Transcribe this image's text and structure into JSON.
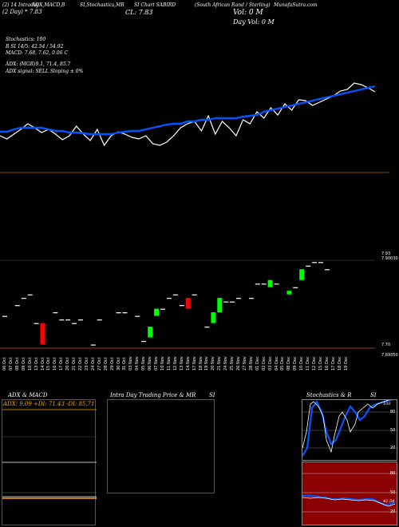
{
  "header": {
    "left1": "(2) 14 Intraday",
    "left2": "(2 Day) * 7.83",
    "item_a": "ADX,MACD,B",
    "item_b": "SI,Stochastics,MR",
    "item_c": "CL: 7.83",
    "item_d": "SI Chart SABIRD",
    "item_e": "(South African Rand / Sterling)",
    "item_f": "MunafaSutra.com",
    "volume": "Vol: 0  M",
    "day_volume": "Day Vol: 0  M"
  },
  "indicators": {
    "stochastics": "Stochastics: 100",
    "rsi": "R                SI 14/5: 42.54  / 54.92",
    "macd": "MACD: 7.68, 7.62, 0.06  C",
    "adx": "ADX:                          (MGR)9.1, 71.4,  85.7",
    "adx_signal": "ADX  signal: SELL  Sloping ± 0%"
  },
  "price_labels": {
    "top": "7.93",
    "top_sub": "7.90030",
    "bottom": "7.70",
    "bottom_sub": "7.69350"
  },
  "dates": [
    "06 Oct",
    "07 Oct",
    "08 Oct",
    "09 Oct",
    "10 Oct",
    "13 Oct",
    "14 Oct",
    "15 Oct",
    "16 Oct",
    "17 Oct",
    "20 Oct",
    "21 Oct",
    "22 Oct",
    "23 Oct",
    "24 Oct",
    "27 Oct",
    "28 Oct",
    "29 Oct",
    "30 Oct",
    "31 Oct",
    "03 Nov",
    "04 Nov",
    "05 Nov",
    "06 Nov",
    "07 Nov",
    "10 Nov",
    "11 Nov",
    "12 Nov",
    "13 Nov",
    "14 Nov",
    "17 Nov",
    "18 Nov",
    "19 Nov",
    "20 Nov",
    "21 Nov",
    "24 Nov",
    "25 Nov",
    "26 Nov",
    "27 Nov",
    "28 Nov",
    "01 Dec",
    "02 Dec",
    "03 Dec",
    "04 Dec",
    "05 Dec",
    "08 Dec",
    "09 Dec",
    "10 Dec",
    "11 Dec",
    "12 Dec",
    "15 Dec",
    "16 Dec",
    "17 Dec",
    "18 Dec",
    "19 Dec"
  ],
  "panels": {
    "adx_title": "ADX  & MACD",
    "adx_values": "ADX: 9.09  +DI: 71.43  -DI: 85.71",
    "intraday_title": "Intra Day Trading Price  & MR",
    "intraday_si": "SI",
    "stoch_title": "Stochastics & R",
    "stoch_si": "SI",
    "stoch_ticks": [
      "80",
      "50",
      "20"
    ],
    "rsi_ticks": [
      "80",
      "50",
      "20"
    ],
    "rsi_last": "42.54",
    "stoch_last": "100"
  },
  "colors": {
    "up": "#00ff00",
    "down": "#ff0000",
    "line_blue": "#0055ff",
    "rsi_bg": "#8b0000",
    "adx_up": "#ffa500"
  },
  "chart_data": {
    "type": "line",
    "stochastic_line": [
      70,
      66,
      72,
      78,
      85,
      80,
      74,
      78,
      72,
      65,
      70,
      82,
      72,
      64,
      78,
      58,
      70,
      75,
      72,
      68,
      66,
      70,
      60,
      58,
      62,
      70,
      80,
      85,
      88,
      76,
      95,
      72,
      88,
      80,
      70,
      90,
      85,
      100,
      92,
      105,
      96,
      110,
      102,
      115,
      114,
      108,
      112,
      116,
      120,
      126,
      128,
      136,
      134,
      130,
      125
    ],
    "rsi_smooth": [
      75,
      75,
      78,
      80,
      80,
      80,
      80,
      78,
      76,
      76,
      74,
      74,
      73,
      72,
      72,
      72,
      72,
      74,
      75,
      76,
      76,
      78,
      80,
      82,
      84,
      85,
      85,
      88,
      88,
      90,
      90,
      92,
      92,
      92,
      92,
      94,
      95,
      96,
      100,
      102,
      104,
      106,
      108,
      110,
      112,
      114,
      116,
      118,
      120,
      122,
      124,
      126,
      128,
      130,
      132
    ],
    "candles": [
      {
        "d": "06 Oct",
        "o": 7.78,
        "c": 7.78
      },
      {
        "d": "08 Oct",
        "o": 7.81,
        "c": 7.81
      },
      {
        "d": "09 Oct",
        "o": 7.83,
        "c": 7.83
      },
      {
        "d": "10 Oct",
        "o": 7.84,
        "c": 7.84
      },
      {
        "d": "13 Oct",
        "o": 7.76,
        "c": 7.76
      },
      {
        "d": "14 Oct",
        "o": 7.76,
        "c": 7.7
      },
      {
        "d": "16 Oct",
        "o": 7.79,
        "c": 7.79
      },
      {
        "d": "17 Oct",
        "o": 7.77,
        "c": 7.77
      },
      {
        "d": "20 Oct",
        "o": 7.77,
        "c": 7.77
      },
      {
        "d": "21 Oct",
        "o": 7.76,
        "c": 7.76
      },
      {
        "d": "22 Oct",
        "o": 7.77,
        "c": 7.77
      },
      {
        "d": "24 Oct",
        "o": 7.7,
        "c": 7.7
      },
      {
        "d": "27 Oct",
        "o": 7.77,
        "c": 7.77
      },
      {
        "d": "30 Oct",
        "o": 7.79,
        "c": 7.79
      },
      {
        "d": "31 Oct",
        "o": 7.79,
        "c": 7.79
      },
      {
        "d": "04 Nov",
        "o": 7.78,
        "c": 7.78
      },
      {
        "d": "05 Nov",
        "o": 7.71,
        "c": 7.71
      },
      {
        "d": "06 Nov",
        "o": 7.72,
        "c": 7.75
      },
      {
        "d": "07 Nov",
        "o": 7.78,
        "c": 7.8
      },
      {
        "d": "10 Nov",
        "o": 7.8,
        "c": 7.8
      },
      {
        "d": "11 Nov",
        "o": 7.83,
        "c": 7.83
      },
      {
        "d": "12 Nov",
        "o": 7.84,
        "c": 7.84
      },
      {
        "d": "13 Nov",
        "o": 7.81,
        "c": 7.81
      },
      {
        "d": "14 Nov",
        "o": 7.83,
        "c": 7.8
      },
      {
        "d": "17 Nov",
        "o": 7.84,
        "c": 7.84
      },
      {
        "d": "19 Nov",
        "o": 7.75,
        "c": 7.75
      },
      {
        "d": "20 Nov",
        "o": 7.76,
        "c": 7.79
      },
      {
        "d": "21 Nov",
        "o": 7.79,
        "c": 7.83
      },
      {
        "d": "24 Nov",
        "o": 7.82,
        "c": 7.82
      },
      {
        "d": "25 Nov",
        "o": 7.82,
        "c": 7.82
      },
      {
        "d": "26 Nov",
        "o": 7.83,
        "c": 7.83
      },
      {
        "d": "28 Nov",
        "o": 7.83,
        "c": 7.83
      },
      {
        "d": "01 Dec",
        "o": 7.87,
        "c": 7.87
      },
      {
        "d": "02 Dec",
        "o": 7.87,
        "c": 7.87
      },
      {
        "d": "03 Dec",
        "o": 7.86,
        "c": 7.88
      },
      {
        "d": "04 Dec",
        "o": 7.87,
        "c": 7.87
      },
      {
        "d": "08 Dec",
        "o": 7.84,
        "c": 7.85
      },
      {
        "d": "09 Dec",
        "o": 7.86,
        "c": 7.86
      },
      {
        "d": "10 Dec",
        "o": 7.88,
        "c": 7.91
      },
      {
        "d": "11 Dec",
        "o": 7.92,
        "c": 7.92
      },
      {
        "d": "12 Dec",
        "o": 7.93,
        "c": 7.93
      },
      {
        "d": "15 Dec",
        "o": 7.93,
        "c": 7.93
      },
      {
        "d": "16 Dec",
        "o": 7.91,
        "c": 7.91
      }
    ]
  }
}
